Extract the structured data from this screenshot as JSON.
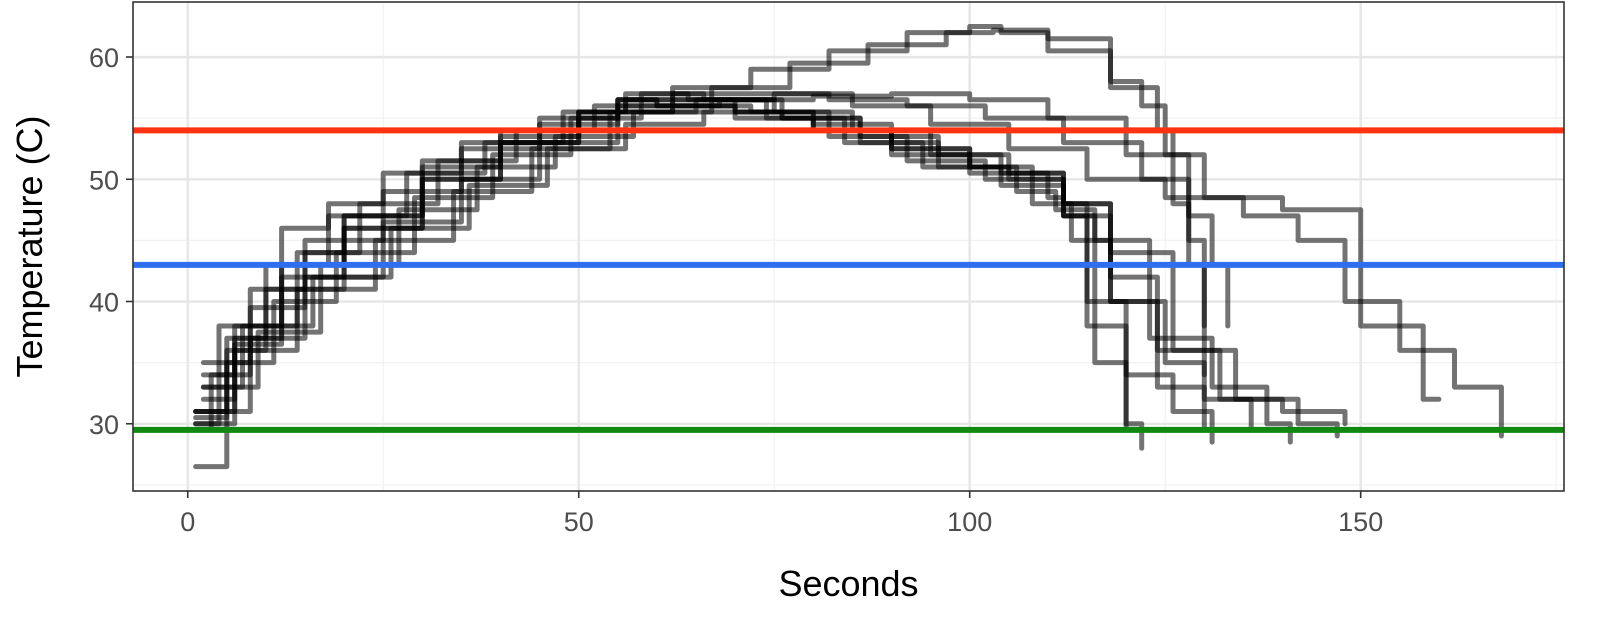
{
  "chart_data": {
    "type": "line",
    "title": "",
    "xlabel": "Seconds",
    "ylabel": "Temperature (C)",
    "xlim": [
      -7,
      176
    ],
    "ylim": [
      24.5,
      64.5
    ],
    "x_ticks": [
      0,
      50,
      100,
      150
    ],
    "y_ticks": [
      30,
      40,
      50,
      60
    ],
    "grid": true,
    "legend": "none",
    "reference_lines": [
      {
        "y": 54,
        "color": "#ff3311"
      },
      {
        "y": 43,
        "color": "#2f6fef"
      },
      {
        "y": 29.5,
        "color": "#118811"
      }
    ],
    "series_color": "#000000",
    "series_opacity": 0.55,
    "series": [
      {
        "x": [
          1,
          5,
          10,
          15,
          20,
          30,
          40,
          50,
          55,
          60,
          70,
          80,
          90,
          100,
          105,
          112,
          115,
          120,
          122
        ],
        "y": [
          26.5,
          36,
          41,
          44,
          47,
          51.5,
          54,
          55.5,
          56.5,
          56,
          55,
          54,
          52.5,
          51,
          50,
          47,
          38,
          30,
          28
        ]
      },
      {
        "x": [
          1,
          4,
          8,
          12,
          18,
          25,
          35,
          45,
          55,
          60,
          70,
          80,
          90,
          100,
          110,
          112,
          116,
          120
        ],
        "y": [
          30,
          38,
          41,
          46,
          48,
          50.5,
          53,
          55,
          56.5,
          56.5,
          55.5,
          54,
          52,
          50.5,
          48.5,
          47,
          35,
          29.5
        ]
      },
      {
        "x": [
          2,
          6,
          12,
          20,
          30,
          40,
          50,
          55,
          62,
          72,
          82,
          92,
          102,
          112,
          115,
          120,
          126,
          131
        ],
        "y": [
          34,
          38,
          43,
          47,
          51,
          53.5,
          55.5,
          56,
          56,
          55.5,
          53.5,
          51.5,
          50,
          48,
          40,
          34,
          31,
          28.5
        ]
      },
      {
        "x": [
          1,
          5,
          10,
          18,
          28,
          38,
          48,
          56,
          65,
          75,
          85,
          95,
          105,
          112,
          118,
          125,
          130,
          136
        ],
        "y": [
          31,
          37,
          43,
          47,
          50.5,
          53,
          55.5,
          56.5,
          56.5,
          55.5,
          54,
          52,
          50.5,
          48,
          40,
          35,
          32,
          29.5
        ]
      },
      {
        "x": [
          1,
          3,
          8,
          15,
          25,
          35,
          45,
          55,
          60,
          70,
          80,
          90,
          100,
          108,
          113,
          118,
          124,
          130
        ],
        "y": [
          29.5,
          34,
          39.5,
          45,
          49,
          52.5,
          54.5,
          56.5,
          56,
          55.5,
          54.5,
          52.5,
          51,
          48,
          45,
          40,
          33,
          29.5
        ]
      },
      {
        "x": [
          2,
          7,
          14,
          22,
          32,
          42,
          52,
          58,
          66,
          76,
          86,
          96,
          106,
          111,
          116,
          123,
          131,
          138,
          141
        ],
        "y": [
          33,
          38,
          44,
          48,
          51.5,
          54,
          56,
          57,
          56.5,
          55,
          53,
          51,
          49,
          47.5,
          45,
          37,
          33,
          30,
          28.5
        ]
      },
      {
        "x": [
          1,
          6,
          12,
          20,
          30,
          40,
          50,
          56,
          64,
          74,
          84,
          94,
          104,
          112,
          118,
          126,
          134,
          142,
          147
        ],
        "y": [
          31,
          36.5,
          42,
          46,
          50,
          53,
          55.5,
          57,
          56.5,
          55,
          53,
          51,
          49.5,
          47,
          44,
          36,
          32,
          30,
          29
        ]
      },
      {
        "x": [
          2,
          8,
          16,
          26,
          36,
          46,
          56,
          66,
          76,
          86,
          96,
          104,
          112,
          118,
          124,
          132,
          140,
          148
        ],
        "y": [
          35,
          38,
          42,
          46,
          49.5,
          52.5,
          54.5,
          55.5,
          55,
          53.5,
          52,
          50.5,
          48,
          42,
          36,
          32,
          31,
          30
        ]
      },
      {
        "x": [
          1,
          5,
          11,
          19,
          29,
          39,
          49,
          55,
          62,
          72,
          82,
          92,
          102,
          112,
          122,
          128,
          131,
          133
        ],
        "y": [
          30.5,
          35,
          40,
          44,
          48.5,
          52,
          55,
          55.5,
          57,
          57,
          56.5,
          56,
          55,
          53,
          50,
          47,
          43,
          38
        ]
      },
      {
        "x": [
          2,
          6,
          12,
          20,
          30,
          40,
          50,
          58,
          68,
          80,
          90,
          100,
          110,
          120,
          130,
          140,
          150,
          158,
          160
        ],
        "y": [
          32,
          37,
          41,
          46,
          50,
          53,
          55,
          56,
          56.5,
          56.8,
          57,
          56.5,
          55,
          52,
          48.5,
          47.5,
          38,
          32,
          32
        ]
      },
      {
        "x": [
          1,
          8,
          15,
          25,
          35,
          45,
          55,
          65,
          75,
          85,
          95,
          105,
          115,
          125,
          135,
          142,
          148,
          155,
          162,
          168
        ],
        "y": [
          31,
          37,
          42,
          46.5,
          50,
          53,
          55.5,
          56.5,
          57,
          56,
          54.5,
          52.5,
          50,
          48.5,
          47,
          45,
          40,
          36,
          33,
          29
        ]
      },
      {
        "x": [
          1,
          6,
          14,
          24,
          34,
          44,
          54,
          62,
          72,
          82,
          92,
          100,
          104,
          110,
          118,
          124,
          126,
          128,
          130
        ],
        "y": [
          30,
          36,
          41,
          45,
          49,
          52.5,
          55.5,
          57.5,
          59,
          60.5,
          62,
          62.5,
          62,
          60.5,
          57.5,
          54,
          48,
          43,
          34
        ]
      },
      {
        "x": [
          2,
          9,
          17,
          27,
          37,
          47,
          57,
          67,
          77,
          87,
          97,
          103,
          110,
          118,
          122,
          125,
          128,
          130
        ],
        "y": [
          33,
          37.5,
          43,
          47.5,
          51,
          53.5,
          55.5,
          57.5,
          59.5,
          61,
          62,
          62.2,
          61.5,
          58,
          56,
          52,
          45,
          38
        ]
      }
    ]
  }
}
